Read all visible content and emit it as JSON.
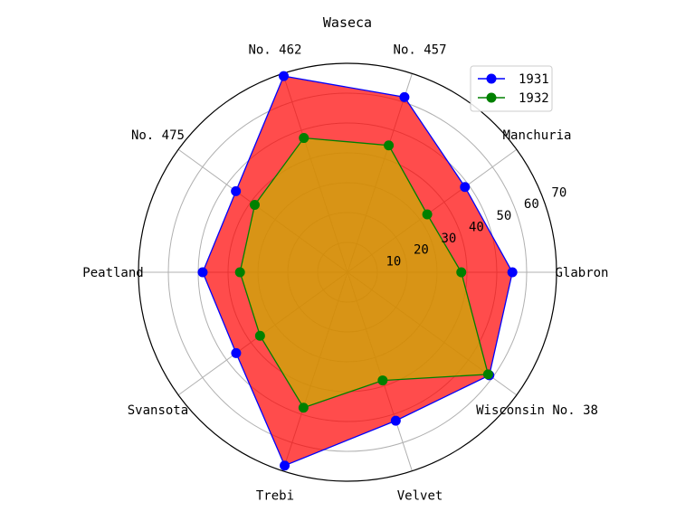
{
  "chart_data": {
    "type": "radar",
    "title": "Waseca",
    "categories": [
      "Glabron",
      "Manchuria",
      "No. 457",
      "No. 462",
      "No. 475",
      "Peatland",
      "Svansota",
      "Trebi",
      "Velvet",
      "Wisconsin No. 38"
    ],
    "radial_ticks": [
      10,
      20,
      30,
      40,
      50,
      60,
      70
    ],
    "rlim": [
      0,
      70
    ],
    "grid": true,
    "legend_position": "top-right",
    "series": [
      {
        "name": "1931",
        "values": [
          55.2,
          48.6,
          61.7,
          69.1,
          46.2,
          48.5,
          46.1,
          68.1,
          52.3,
          58.7
        ],
        "line_color": "#0000ff",
        "fill_color": "#ff0000",
        "marker_color": "#0000ff"
      },
      {
        "name": "1932",
        "values": [
          38.1,
          33.0,
          44.7,
          47.3,
          38.4,
          36.0,
          36.2,
          47.7,
          38.1,
          58.2
        ],
        "line_color": "#008000",
        "fill_color": "#c8b400",
        "marker_color": "#008000"
      }
    ]
  }
}
